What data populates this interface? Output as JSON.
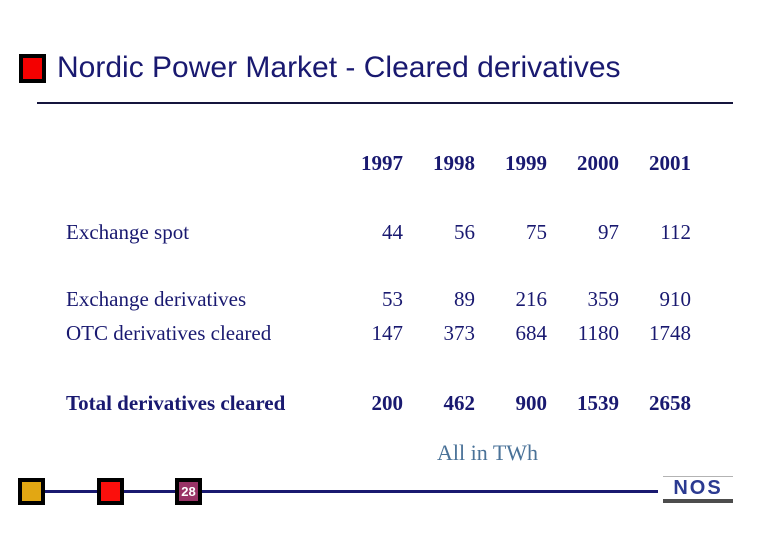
{
  "slide": {
    "title": "Nordic Power Market - Cleared derivatives",
    "units_note": "All in TWh",
    "page_number": "28",
    "logo_text": "NOS"
  },
  "table": {
    "years": [
      "1997",
      "1998",
      "1999",
      "2000",
      "2001"
    ],
    "rows": [
      {
        "label": "Exchange spot",
        "values": [
          "44",
          "56",
          "75",
          "97",
          "112"
        ]
      },
      {
        "label": "Exchange derivatives",
        "values": [
          "53",
          "89",
          "216",
          "359",
          "910"
        ]
      },
      {
        "label": "OTC derivatives cleared",
        "values": [
          "147",
          "373",
          "684",
          "1180",
          "1748"
        ]
      },
      {
        "label": "Total derivatives cleared",
        "values": [
          "200",
          "462",
          "900",
          "1539",
          "2658"
        ]
      }
    ]
  },
  "chart_data": {
    "type": "table",
    "title": "Nordic Power Market - Cleared derivatives",
    "categories": [
      "1997",
      "1998",
      "1999",
      "2000",
      "2001"
    ],
    "series": [
      {
        "name": "Exchange spot",
        "values": [
          44,
          56,
          75,
          97,
          112
        ]
      },
      {
        "name": "Exchange derivatives",
        "values": [
          53,
          89,
          216,
          359,
          910
        ]
      },
      {
        "name": "OTC derivatives cleared",
        "values": [
          147,
          373,
          684,
          1180,
          1748
        ]
      },
      {
        "name": "Total derivatives cleared",
        "values": [
          200,
          462,
          900,
          1539,
          2658
        ]
      }
    ],
    "units": "All in TWh"
  },
  "colors": {
    "text_navy": "#191970",
    "units_steel_blue": "#4a7298",
    "bullet_red": "#f40000",
    "footer_yellow": "#e2a713",
    "footer_red": "#fb0f0c",
    "footer_purple": "#993366",
    "logo_blue": "#2b3a91"
  }
}
